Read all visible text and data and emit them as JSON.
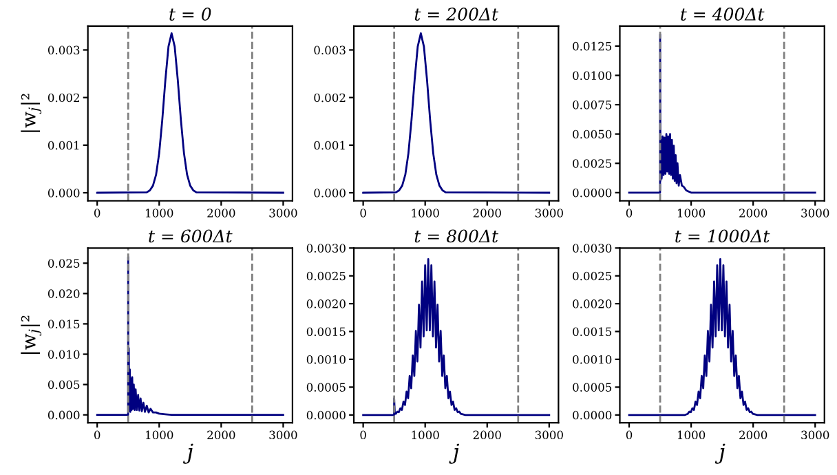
{
  "chart_data": [
    {
      "type": "line",
      "title": "t = 0",
      "ylabel": "|w$_{j}$|²",
      "xlim": [
        -150,
        3150
      ],
      "xticks": [
        0,
        1000,
        2000,
        3000
      ],
      "ylim": [
        -0.00017,
        0.0035
      ],
      "yticks": [
        {
          "value": 0,
          "label": "0.000"
        },
        {
          "value": 0.001,
          "label": "0.001"
        },
        {
          "value": 0.002,
          "label": "0.002"
        },
        {
          "value": 0.003,
          "label": "0.003"
        }
      ],
      "grid": false,
      "legend": false,
      "ref_lines": [
        {
          "axis": "x",
          "value": 500,
          "color": "#808080",
          "line_style": "dashed"
        },
        {
          "axis": "x",
          "value": 2500,
          "color": "#808080",
          "line_style": "dashed"
        }
      ],
      "series": [
        {
          "color": "#000080",
          "x": [
            0,
            800,
            850,
            900,
            950,
            1000,
            1050,
            1100,
            1150,
            1200,
            1250,
            1300,
            1350,
            1400,
            1450,
            1500,
            1550,
            1600,
            3000
          ],
          "values": [
            0,
            1e-05,
            5e-05,
            0.00015,
            0.00038,
            0.00083,
            0.00153,
            0.00237,
            0.00307,
            0.00335,
            0.00307,
            0.00237,
            0.00153,
            0.00083,
            0.00038,
            0.00015,
            5e-05,
            1e-05,
            0
          ]
        }
      ]
    },
    {
      "type": "line",
      "title": "t = 200Δt",
      "xlim": [
        -150,
        3150
      ],
      "xticks": [
        0,
        1000,
        2000,
        3000
      ],
      "ylim": [
        -0.00017,
        0.0035
      ],
      "yticks": [
        {
          "value": 0,
          "label": "0.000"
        },
        {
          "value": 0.001,
          "label": "0.001"
        },
        {
          "value": 0.002,
          "label": "0.002"
        },
        {
          "value": 0.003,
          "label": "0.003"
        }
      ],
      "grid": false,
      "legend": false,
      "ref_lines": [
        {
          "axis": "x",
          "value": 500,
          "color": "#808080",
          "line_style": "dashed"
        },
        {
          "axis": "x",
          "value": 2500,
          "color": "#808080",
          "line_style": "dashed"
        }
      ],
      "series": [
        {
          "color": "#000080",
          "x": [
            0,
            530,
            580,
            630,
            680,
            730,
            780,
            830,
            880,
            930,
            980,
            1030,
            1080,
            1130,
            1180,
            1230,
            1280,
            1330,
            3000
          ],
          "values": [
            0,
            1e-05,
            5e-05,
            0.00015,
            0.00038,
            0.00083,
            0.00153,
            0.00237,
            0.00307,
            0.00335,
            0.00307,
            0.00237,
            0.00153,
            0.00083,
            0.00038,
            0.00015,
            5e-05,
            1e-05,
            0
          ]
        }
      ]
    },
    {
      "type": "line",
      "title": "t = 400Δt",
      "xlim": [
        -150,
        3150
      ],
      "xticks": [
        0,
        1000,
        2000,
        3000
      ],
      "ylim": [
        -0.0007,
        0.0142
      ],
      "yticks": [
        {
          "value": 0,
          "label": "0.0000"
        },
        {
          "value": 0.0025,
          "label": "0.0025"
        },
        {
          "value": 0.005,
          "label": "0.0050"
        },
        {
          "value": 0.0075,
          "label": "0.0075"
        },
        {
          "value": 0.01,
          "label": "0.0100"
        },
        {
          "value": 0.0125,
          "label": "0.0125"
        }
      ],
      "grid": false,
      "legend": false,
      "ref_lines": [
        {
          "axis": "x",
          "value": 500,
          "color": "#808080",
          "line_style": "dashed"
        },
        {
          "axis": "x",
          "value": 2500,
          "color": "#808080",
          "line_style": "dashed"
        }
      ],
      "series": [
        {
          "color": "#000080",
          "x": [
            0,
            499,
            500,
            505,
            515,
            525,
            540,
            555,
            570,
            585,
            600,
            615,
            630,
            645,
            660,
            675,
            690,
            705,
            720,
            735,
            750,
            765,
            780,
            800,
            820,
            850,
            880,
            920,
            960,
            1000,
            3000
          ],
          "values": [
            0,
            0,
            0.0135,
            0.001,
            0.0045,
            0.0012,
            0.0048,
            0.0015,
            0.0047,
            0.0016,
            0.005,
            0.0018,
            0.0048,
            0.0016,
            0.005,
            0.0015,
            0.0045,
            0.0012,
            0.004,
            0.001,
            0.0032,
            0.0008,
            0.0025,
            0.0006,
            0.0015,
            0.0006,
            0.0005,
            0.0002,
            0.0001,
            0,
            0
          ]
        }
      ]
    },
    {
      "type": "line",
      "title": "t = 600Δt",
      "ylabel": "|w$_{j}$|²",
      "xlabel": "j",
      "xlim": [
        -150,
        3150
      ],
      "xticks": [
        0,
        1000,
        2000,
        3000
      ],
      "ylim": [
        -0.0013,
        0.0275
      ],
      "yticks": [
        {
          "value": 0,
          "label": "0.000"
        },
        {
          "value": 0.005,
          "label": "0.005"
        },
        {
          "value": 0.01,
          "label": "0.010"
        },
        {
          "value": 0.015,
          "label": "0.015"
        },
        {
          "value": 0.02,
          "label": "0.020"
        },
        {
          "value": 0.025,
          "label": "0.025"
        }
      ],
      "grid": false,
      "legend": false,
      "ref_lines": [
        {
          "axis": "x",
          "value": 500,
          "color": "#808080",
          "line_style": "dashed"
        },
        {
          "axis": "x",
          "value": 2500,
          "color": "#808080",
          "line_style": "dashed"
        }
      ],
      "series": [
        {
          "color": "#000080",
          "x": [
            0,
            499,
            500,
            503,
            510,
            518,
            526,
            535,
            545,
            555,
            565,
            575,
            590,
            605,
            620,
            640,
            660,
            680,
            700,
            720,
            745,
            770,
            800,
            830,
            860,
            900,
            950,
            1000,
            1100,
            1200,
            3000
          ],
          "values": [
            0,
            0,
            0.026,
            0.0005,
            0.011,
            0.001,
            0.0075,
            0.0005,
            0.006,
            0.0008,
            0.0062,
            0.001,
            0.005,
            0.0008,
            0.0042,
            0.0008,
            0.0033,
            0.0007,
            0.0027,
            0.0006,
            0.002,
            0.0005,
            0.0015,
            0.0004,
            0.001,
            0.0004,
            0.0004,
            0.0002,
            0.0001,
            0,
            0
          ]
        }
      ]
    },
    {
      "type": "line",
      "title": "t = 800Δt",
      "xlabel": "j",
      "xlim": [
        -150,
        3150
      ],
      "xticks": [
        0,
        1000,
        2000,
        3000
      ],
      "ylim": [
        -0.00014,
        0.003
      ],
      "yticks": [
        {
          "value": 0,
          "label": "0.0000"
        },
        {
          "value": 0.0005,
          "label": "0.0005"
        },
        {
          "value": 0.001,
          "label": "0.0010"
        },
        {
          "value": 0.0015,
          "label": "0.0015"
        },
        {
          "value": 0.002,
          "label": "0.0020"
        },
        {
          "value": 0.0025,
          "label": "0.0025"
        },
        {
          "value": 0.003,
          "label": "0.0030"
        }
      ],
      "grid": false,
      "legend": false,
      "ref_lines": [
        {
          "axis": "x",
          "value": 500,
          "color": "#808080",
          "line_style": "dashed"
        },
        {
          "axis": "x",
          "value": 2500,
          "color": "#808080",
          "line_style": "dashed"
        }
      ],
      "series": [
        {
          "color": "#000080",
          "x": [
            0,
            499,
            500,
            510,
            525,
            550,
            575,
            600,
            625,
            650,
            675,
            700,
            725,
            750,
            775,
            800,
            825,
            850,
            875,
            900,
            925,
            950,
            975,
            1000,
            1025,
            1050,
            1075,
            1100,
            1125,
            1150,
            1175,
            1200,
            1225,
            1250,
            1275,
            1300,
            1325,
            1350,
            1375,
            1400,
            1425,
            1450,
            1475,
            1500,
            1525,
            1550,
            1575,
            1650,
            3000
          ],
          "values": [
            0,
            0,
            0.0003,
            2e-05,
            2e-05,
            6e-05,
            5e-05,
            0.00012,
            9e-05,
            0.00024,
            0.00018,
            0.00042,
            0.0003,
            0.0007,
            0.00048,
            0.00107,
            0.0007,
            0.00151,
            0.00096,
            0.00198,
            0.00121,
            0.0024,
            0.00141,
            0.00269,
            0.00152,
            0.0028,
            0.00152,
            0.00269,
            0.00141,
            0.0024,
            0.00121,
            0.00198,
            0.00096,
            0.00151,
            0.0007,
            0.00107,
            0.00048,
            0.0007,
            0.0003,
            0.00042,
            0.00018,
            0.00024,
            9e-05,
            0.00012,
            5e-05,
            6e-05,
            2e-05,
            0,
            0
          ]
        }
      ]
    },
    {
      "type": "line",
      "title": "t = 1000Δt",
      "xlabel": "j",
      "xlim": [
        -150,
        3150
      ],
      "xticks": [
        0,
        1000,
        2000,
        3000
      ],
      "ylim": [
        -0.00014,
        0.003
      ],
      "yticks": [
        {
          "value": 0,
          "label": "0.0000"
        },
        {
          "value": 0.0005,
          "label": "0.0005"
        },
        {
          "value": 0.001,
          "label": "0.0010"
        },
        {
          "value": 0.0015,
          "label": "0.0015"
        },
        {
          "value": 0.002,
          "label": "0.0020"
        },
        {
          "value": 0.0025,
          "label": "0.0025"
        },
        {
          "value": 0.003,
          "label": "0.0030"
        }
      ],
      "grid": false,
      "legend": false,
      "ref_lines": [
        {
          "axis": "x",
          "value": 500,
          "color": "#808080",
          "line_style": "dashed"
        },
        {
          "axis": "x",
          "value": 2500,
          "color": "#808080",
          "line_style": "dashed"
        }
      ],
      "series": [
        {
          "color": "#000080",
          "x": [
            0,
            900,
            945,
            970,
            995,
            1020,
            1045,
            1070,
            1095,
            1120,
            1145,
            1170,
            1195,
            1220,
            1245,
            1270,
            1295,
            1320,
            1345,
            1370,
            1395,
            1420,
            1445,
            1470,
            1495,
            1520,
            1545,
            1570,
            1595,
            1620,
            1645,
            1670,
            1695,
            1720,
            1745,
            1770,
            1795,
            1820,
            1845,
            1870,
            1895,
            1920,
            1945,
            1970,
            1995,
            2070,
            3000
          ],
          "values": [
            0,
            0,
            2e-05,
            6e-05,
            5e-05,
            0.00012,
            9e-05,
            0.00024,
            0.00018,
            0.00042,
            0.0003,
            0.0007,
            0.00048,
            0.00107,
            0.0007,
            0.00151,
            0.00096,
            0.00198,
            0.00121,
            0.0024,
            0.00141,
            0.00269,
            0.00152,
            0.0028,
            0.00152,
            0.00269,
            0.00141,
            0.0024,
            0.00121,
            0.00198,
            0.00096,
            0.00151,
            0.0007,
            0.00107,
            0.00048,
            0.0007,
            0.0003,
            0.00042,
            0.00018,
            0.00024,
            9e-05,
            0.00012,
            5e-05,
            6e-05,
            2e-05,
            0,
            0
          ]
        }
      ]
    }
  ]
}
